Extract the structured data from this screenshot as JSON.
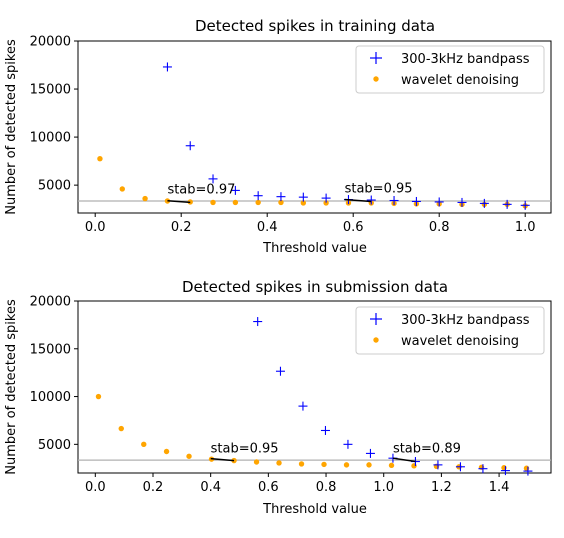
{
  "chart_data": [
    {
      "type": "scatter",
      "title": "Detected spikes in training data",
      "xlabel": "Threshold value",
      "ylabel": "Number of detected spikes",
      "xlim": [
        -0.04,
        1.06
      ],
      "ylim": [
        2100,
        20000
      ],
      "xticks": [
        0.0,
        0.2,
        0.4,
        0.6,
        0.8,
        1.0
      ],
      "xtick_labels": [
        "0.0",
        "0.2",
        "0.4",
        "0.6",
        "0.8",
        "1.0"
      ],
      "yticks": [
        5000,
        10000,
        15000,
        20000
      ],
      "ytick_labels": [
        "5000",
        "10000",
        "15000",
        "20000"
      ],
      "grid": false,
      "legend_position": "upper right",
      "reference_line": 3350,
      "series": [
        {
          "name": "300-3kHz bandpass",
          "marker": "plus",
          "color": "#0000ff",
          "x": [
            0.168,
            0.221,
            0.274,
            0.326,
            0.379,
            0.432,
            0.484,
            0.537,
            0.589,
            0.642,
            0.695,
            0.747,
            0.8,
            0.853,
            0.905,
            0.958,
            1.0
          ],
          "y": [
            17300,
            9100,
            5650,
            4450,
            3900,
            3800,
            3750,
            3650,
            3500,
            3450,
            3400,
            3300,
            3250,
            3200,
            3100,
            3000,
            2900
          ]
        },
        {
          "name": "wavelet denoising",
          "marker": "dot",
          "color": "#ffa500",
          "x": [
            0.011,
            0.063,
            0.116,
            0.168,
            0.221,
            0.274,
            0.326,
            0.379,
            0.432,
            0.484,
            0.537,
            0.589,
            0.642,
            0.695,
            0.747,
            0.8,
            0.853,
            0.905,
            0.958,
            1.0
          ],
          "y": [
            7750,
            4600,
            3600,
            3350,
            3250,
            3200,
            3200,
            3200,
            3200,
            3150,
            3150,
            3150,
            3150,
            3100,
            3050,
            3050,
            3000,
            3000,
            3000,
            2850
          ]
        }
      ],
      "annotations": [
        {
          "text": "stab=0.97",
          "x": 0.168,
          "y": 4150,
          "line": [
            [
              0.168,
              3380
            ],
            [
              0.221,
              3200
            ]
          ]
        },
        {
          "text": "stab=0.95",
          "x": 0.58,
          "y": 4250,
          "line": [
            [
              0.58,
              3500
            ],
            [
              0.642,
              3300
            ]
          ]
        }
      ]
    },
    {
      "type": "scatter",
      "title": "Detected spikes in submission data",
      "xlabel": "Threshold value",
      "ylabel": "Number of detected spikes",
      "xlim": [
        -0.06,
        1.58
      ],
      "ylim": [
        2000,
        20000
      ],
      "xticks": [
        0.0,
        0.2,
        0.4,
        0.6,
        0.8,
        1.0,
        1.2,
        1.4
      ],
      "xtick_labels": [
        "0.0",
        "0.2",
        "0.4",
        "0.6",
        "0.8",
        "1.0",
        "1.2",
        "1.4"
      ],
      "yticks": [
        5000,
        10000,
        15000,
        20000
      ],
      "ytick_labels": [
        "5000",
        "10000",
        "15000",
        "20000"
      ],
      "grid": false,
      "legend_position": "upper right",
      "reference_line": 3350,
      "series": [
        {
          "name": "300-3kHz bandpass",
          "marker": "plus",
          "color": "#0000ff",
          "x": [
            0.563,
            0.642,
            0.72,
            0.798,
            0.876,
            0.954,
            1.032,
            1.11,
            1.188,
            1.266,
            1.344,
            1.422,
            1.5
          ],
          "y": [
            17850,
            12650,
            9000,
            6450,
            5000,
            4050,
            3550,
            3200,
            2850,
            2650,
            2450,
            2250,
            2200
          ]
        },
        {
          "name": "wavelet denoising",
          "marker": "dot",
          "color": "#ffa500",
          "x": [
            0.011,
            0.09,
            0.168,
            0.247,
            0.325,
            0.403,
            0.481,
            0.559,
            0.637,
            0.715,
            0.793,
            0.871,
            0.949,
            1.027,
            1.105,
            1.183,
            1.261,
            1.339,
            1.417,
            1.495
          ],
          "y": [
            10000,
            6650,
            5000,
            4250,
            3750,
            3450,
            3300,
            3150,
            3050,
            2950,
            2900,
            2850,
            2850,
            2800,
            2750,
            2700,
            2650,
            2600,
            2550,
            2500
          ]
        }
      ],
      "annotations": [
        {
          "text": "stab=0.95",
          "x": 0.4,
          "y": 4150,
          "line": [
            [
              0.4,
              3500
            ],
            [
              0.481,
              3300
            ]
          ]
        },
        {
          "text": "stab=0.89",
          "x": 1.032,
          "y": 4150,
          "line": [
            [
              1.032,
              3550
            ],
            [
              1.11,
              3200
            ]
          ]
        }
      ]
    }
  ]
}
